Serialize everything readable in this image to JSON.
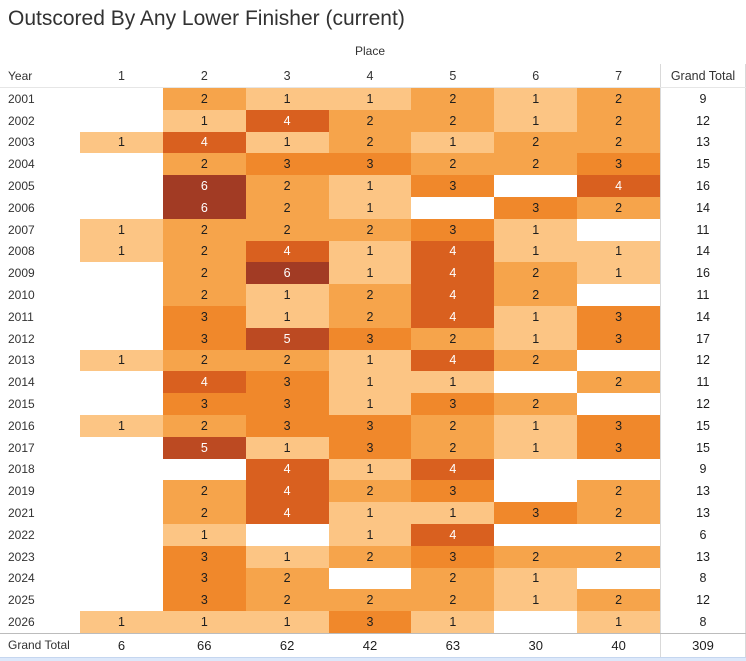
{
  "title": "Outscored By Any Lower Finisher (current)",
  "labels": {
    "x_dimension": "Place",
    "y_dimension": "Year",
    "grand_total": "Grand Total"
  },
  "chart_data": {
    "type": "heatmap",
    "title": "Outscored By Any Lower Finisher (current)",
    "x_axis_label": "Place",
    "y_axis_label": "Year",
    "columns": [
      "1",
      "2",
      "3",
      "4",
      "5",
      "6",
      "7"
    ],
    "rows": [
      "2001",
      "2002",
      "2003",
      "2004",
      "2005",
      "2006",
      "2007",
      "2008",
      "2009",
      "2010",
      "2011",
      "2012",
      "2013",
      "2014",
      "2015",
      "2016",
      "2017",
      "2018",
      "2019",
      "2021",
      "2022",
      "2023",
      "2024",
      "2025",
      "2026"
    ],
    "values": [
      [
        null,
        2,
        1,
        1,
        2,
        1,
        2
      ],
      [
        null,
        1,
        4,
        2,
        2,
        1,
        2
      ],
      [
        1,
        4,
        1,
        2,
        1,
        2,
        2
      ],
      [
        null,
        2,
        3,
        3,
        2,
        2,
        3
      ],
      [
        null,
        6,
        2,
        1,
        3,
        null,
        4
      ],
      [
        null,
        6,
        2,
        1,
        null,
        3,
        2
      ],
      [
        1,
        2,
        2,
        2,
        3,
        1,
        null
      ],
      [
        1,
        2,
        4,
        1,
        4,
        1,
        1
      ],
      [
        null,
        2,
        6,
        1,
        4,
        2,
        1
      ],
      [
        null,
        2,
        1,
        2,
        4,
        2,
        null
      ],
      [
        null,
        3,
        1,
        2,
        4,
        1,
        3
      ],
      [
        null,
        3,
        5,
        3,
        2,
        1,
        3
      ],
      [
        1,
        2,
        2,
        1,
        4,
        2,
        null
      ],
      [
        null,
        4,
        3,
        1,
        1,
        null,
        2
      ],
      [
        null,
        3,
        3,
        1,
        3,
        2,
        null
      ],
      [
        1,
        2,
        3,
        3,
        2,
        1,
        3
      ],
      [
        null,
        5,
        1,
        3,
        2,
        1,
        3
      ],
      [
        null,
        null,
        4,
        1,
        4,
        null,
        null
      ],
      [
        null,
        2,
        4,
        2,
        3,
        null,
        2
      ],
      [
        null,
        2,
        4,
        1,
        1,
        3,
        2
      ],
      [
        null,
        1,
        null,
        1,
        4,
        null,
        null
      ],
      [
        null,
        3,
        1,
        2,
        3,
        2,
        2
      ],
      [
        null,
        3,
        2,
        null,
        2,
        1,
        null
      ],
      [
        null,
        3,
        2,
        2,
        2,
        1,
        2
      ],
      [
        1,
        1,
        1,
        3,
        1,
        null,
        1
      ]
    ],
    "row_totals": [
      9,
      12,
      13,
      15,
      16,
      14,
      11,
      14,
      16,
      11,
      14,
      17,
      12,
      11,
      12,
      15,
      15,
      9,
      13,
      13,
      6,
      13,
      8,
      12,
      8
    ],
    "column_totals": [
      6,
      66,
      62,
      42,
      63,
      30,
      40
    ],
    "grand_total": 309,
    "color_scale": {
      "1": "#fcc584",
      "2": "#f6a44b",
      "3": "#f0882b",
      "4": "#d9601f",
      "5": "#bc4a22",
      "6": "#a23b24"
    },
    "empty_color": "#ffffff",
    "text_dark": "#1e1e1e",
    "text_light": "#ffffff",
    "legend_position": "none",
    "grid_on": false
  }
}
